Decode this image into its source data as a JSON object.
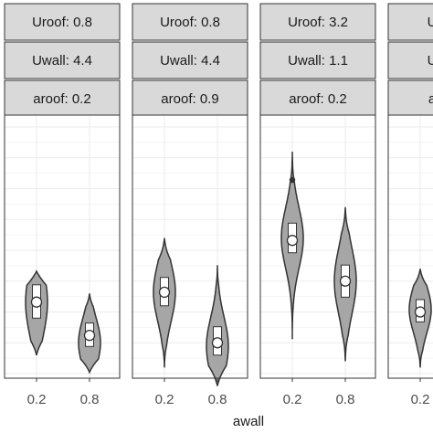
{
  "chart_data": {
    "type": "violin",
    "xlabel": "awall",
    "ylabel": "",
    "x_categories": [
      "0.2",
      "0.8"
    ],
    "facet_variables": [
      "Uroof",
      "Uwall",
      "aroof"
    ],
    "grid": true,
    "colors": {
      "violin_fill": "#a6a6a6",
      "violin_stroke": "#333333",
      "strip_fill": "#d9d9d9",
      "strip_stroke": "#333333",
      "grid": "#ebebeb",
      "panel_border": "#333333"
    },
    "panels": [
      {
        "strips": [
          "Uroof: 0.8",
          "Uwall: 4.4",
          "aroof: 0.2"
        ],
        "groups": [
          {
            "x": "0.2",
            "min": 0.15,
            "max": 0.83,
            "q1": 0.45,
            "median": 0.58,
            "q3": 0.72,
            "mean": 0.58,
            "mode": 0.58,
            "outliers": []
          },
          {
            "x": "0.8",
            "min": 0.01,
            "max": 0.65,
            "q1": 0.22,
            "median": 0.31,
            "q3": 0.41,
            "mean": 0.31,
            "mode": 0.25,
            "outliers": []
          }
        ]
      },
      {
        "strips": [
          "Uroof: 0.8",
          "Uwall: 4.4",
          "aroof: 0.9"
        ],
        "groups": [
          {
            "x": "0.2",
            "min": 0.05,
            "max": 1.1,
            "q1": 0.55,
            "median": 0.66,
            "q3": 0.78,
            "mean": 0.66,
            "mode": 0.66,
            "outliers": []
          },
          {
            "x": "0.8",
            "min": -0.1,
            "max": 0.88,
            "q1": 0.15,
            "median": 0.25,
            "q3": 0.38,
            "mean": 0.25,
            "mode": 0.22,
            "outliers": []
          }
        ]
      },
      {
        "strips": [
          "Uroof: 3.2",
          "Uwall: 1.1",
          "aroof: 0.2"
        ],
        "groups": [
          {
            "x": "0.2",
            "min": 0.28,
            "max": 1.8,
            "q1": 0.98,
            "median": 1.08,
            "q3": 1.22,
            "mean": 1.08,
            "mode": 1.1,
            "outliers": [
              1.57
            ]
          },
          {
            "x": "0.8",
            "min": 0.1,
            "max": 1.35,
            "q1": 0.62,
            "median": 0.75,
            "q3": 0.88,
            "mean": 0.75,
            "mode": 0.75,
            "outliers": []
          }
        ]
      },
      {
        "strips": [
          "Uroof: ",
          "Uwall: ",
          "aroof: "
        ],
        "groups": [
          {
            "x": "0.2",
            "min": 0.05,
            "max": 0.85,
            "q1": 0.42,
            "median": 0.5,
            "q3": 0.6,
            "mean": 0.5,
            "mode": 0.52,
            "outliers": []
          }
        ]
      }
    ]
  }
}
